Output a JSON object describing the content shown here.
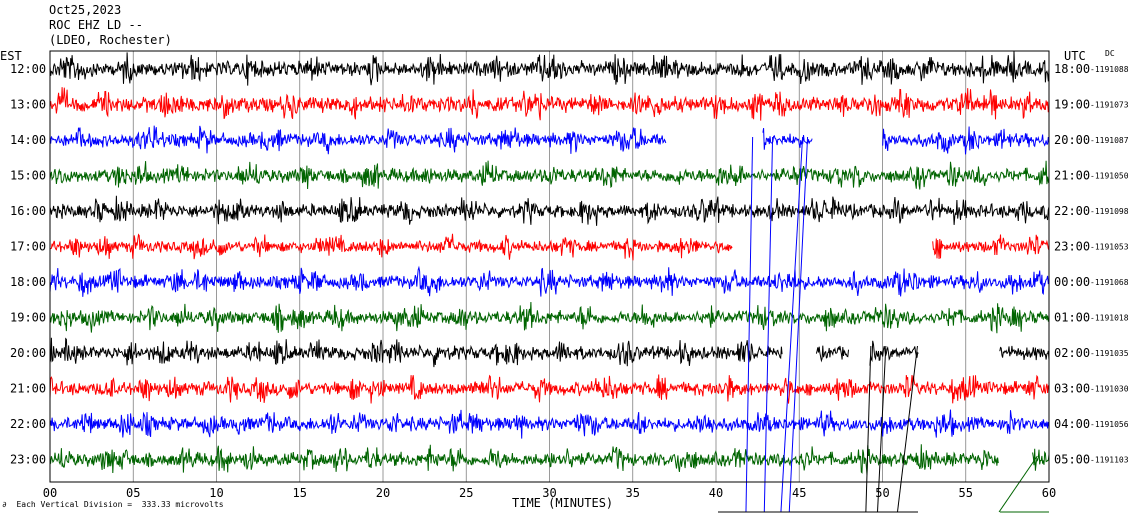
{
  "header": {
    "date": "Oct25,2023",
    "station": "ROC EHZ LD --",
    "network": "(LDEO, Rochester)"
  },
  "footer": {
    "scale_note": "Each Vertical Division =  333.33 microvolts",
    "mark": "∂"
  },
  "chart_data": {
    "type": "line",
    "title": "",
    "xlabel": "TIME (MINUTES)",
    "ylabel_left": "EST",
    "ylabel_right": "UTC",
    "dc_label": "DC",
    "xlim": [
      0,
      60
    ],
    "x_ticks": [
      "00",
      "05",
      "10",
      "15",
      "20",
      "25",
      "30",
      "35",
      "40",
      "45",
      "50",
      "55",
      "60"
    ],
    "rows": [
      {
        "est": "12:00",
        "utc": "18:00",
        "dc": "-1191088",
        "color": "#000000",
        "amp": 9,
        "gaps": []
      },
      {
        "est": "13:00",
        "utc": "19:00",
        "dc": "-1191073",
        "color": "#ff0000",
        "amp": 9,
        "gaps": []
      },
      {
        "est": "14:00",
        "utc": "20:00",
        "dc": "-1191087",
        "color": "#0000ff",
        "amp": 8,
        "gaps": [
          [
            37,
            42.8
          ],
          [
            45.8,
            50
          ]
        ]
      },
      {
        "est": "15:00",
        "utc": "21:00",
        "dc": "-1191050",
        "color": "#006400",
        "amp": 8,
        "gaps": []
      },
      {
        "est": "16:00",
        "utc": "22:00",
        "dc": "-1191098",
        "color": "#000000",
        "amp": 8,
        "gaps": []
      },
      {
        "est": "17:00",
        "utc": "23:00",
        "dc": "-1191053",
        "color": "#ff0000",
        "amp": 7,
        "gaps": [
          [
            41,
            53
          ]
        ]
      },
      {
        "est": "18:00",
        "utc": "00:00",
        "dc": "-1191068",
        "color": "#0000ff",
        "amp": 8,
        "gaps": []
      },
      {
        "est": "19:00",
        "utc": "01:00",
        "dc": "-1191018",
        "color": "#006400",
        "amp": 8,
        "gaps": []
      },
      {
        "est": "20:00",
        "utc": "02:00",
        "dc": "-1191035",
        "color": "#000000",
        "amp": 8,
        "gaps": [
          [
            44,
            46
          ],
          [
            48,
            49.2
          ],
          [
            52.2,
            57
          ]
        ]
      },
      {
        "est": "21:00",
        "utc": "03:00",
        "dc": "-1191030",
        "color": "#ff0000",
        "amp": 8,
        "gaps": []
      },
      {
        "est": "22:00",
        "utc": "04:00",
        "dc": "-1191056",
        "color": "#0000ff",
        "amp": 8,
        "gaps": []
      },
      {
        "est": "23:00",
        "utc": "05:00",
        "dc": "-1191103",
        "color": "#006400",
        "amp": 8,
        "gaps": [
          [
            57,
            59
          ]
        ]
      }
    ],
    "grid": true
  }
}
